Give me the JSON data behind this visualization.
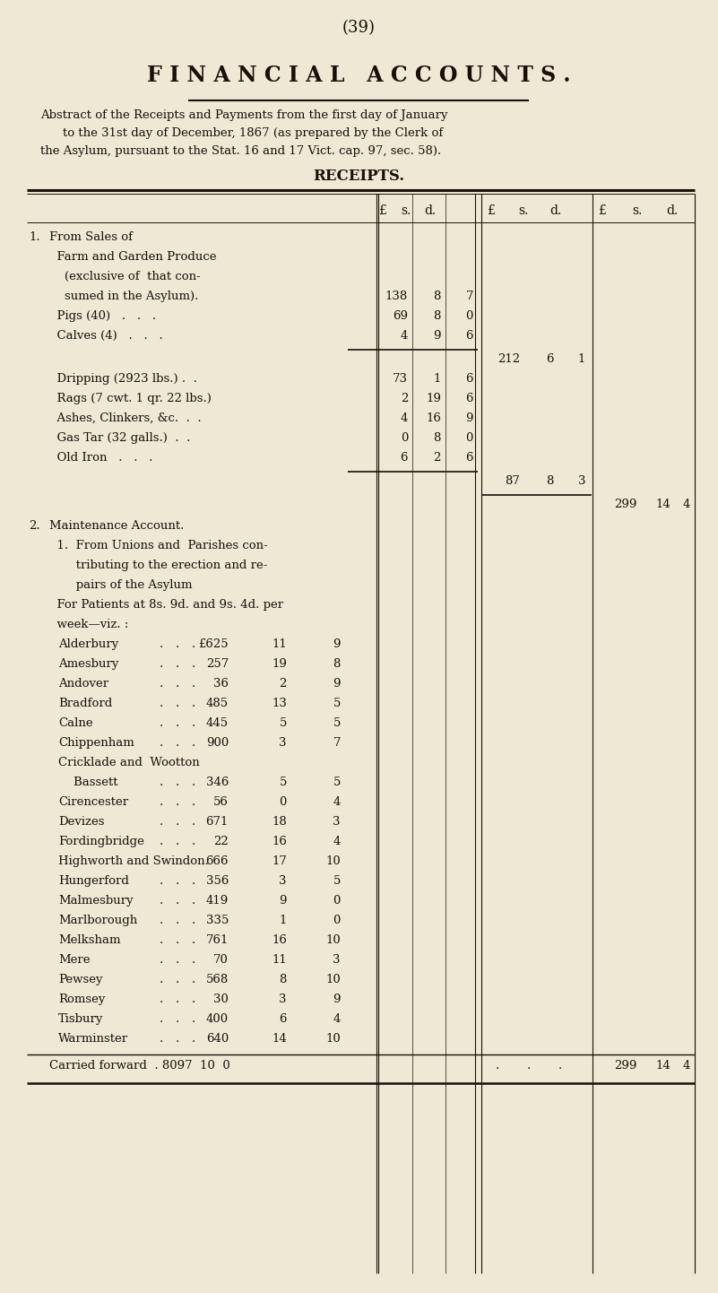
{
  "bg_color": "#eee8d5",
  "text_color": "#1a1008",
  "page_number": "(39)",
  "title": "F I N A N C I A L   A C C O U N T S .",
  "subtitle_line1": "Abstract of the Receipts and Payments from the first day of January",
  "subtitle_line2": "to the 31st day of December, 1867 (as prepared by the Clerk of",
  "subtitle_line3": "the Asylum, pursuant to the Stat. 16 and 17 Vict. cap. 97, sec. 58).",
  "section_title": "RECEIPTS.",
  "col_hdr_lsd": "£   s.   d.",
  "parishes": [
    [
      "Alderbury",
      ".",
      ".",
      ".",
      "£625",
      "11",
      "9"
    ],
    [
      "Amesbury",
      ".",
      ".",
      ".",
      "257",
      "19",
      "8"
    ],
    [
      "Andover",
      ".",
      ".",
      ".",
      "36",
      "2",
      "9"
    ],
    [
      "Bradford",
      ".",
      ".",
      ".",
      "485",
      "13",
      "5"
    ],
    [
      "Calne",
      ".",
      ".",
      ".",
      "445",
      "5",
      "5"
    ],
    [
      "Chippenham",
      ".",
      ".",
      ".",
      "900",
      "3",
      "7"
    ],
    [
      "Cricklade and  Wootton",
      "",
      "",
      "",
      "",
      "",
      ""
    ],
    [
      "    Bassett",
      ".",
      ".",
      ".",
      "346",
      "5",
      "5"
    ],
    [
      "Cirencester",
      ".",
      ".",
      ".",
      "56",
      "0",
      "4"
    ],
    [
      "Devizes",
      ".",
      ".",
      ".",
      "671",
      "18",
      "3"
    ],
    [
      "Fordingbridge",
      ".",
      ".",
      ".",
      "22",
      "16",
      "4"
    ],
    [
      "Highworth and Swindon.",
      "",
      "",
      "",
      "666",
      "17",
      "10"
    ],
    [
      "Hungerford",
      ".",
      ".",
      ".",
      "356",
      "3",
      "5"
    ],
    [
      "Malmesbury",
      ".",
      ".",
      ".",
      "419",
      "9",
      "0"
    ],
    [
      "Marlborough",
      ".",
      ".",
      ".",
      "335",
      "1",
      "0"
    ],
    [
      "Melksham",
      ".",
      ".",
      ".",
      "761",
      "16",
      "10"
    ],
    [
      "Mere",
      ".",
      ".",
      ".",
      "70",
      "11",
      "3"
    ],
    [
      "Pewsey",
      ".",
      ".",
      ".",
      "568",
      "8",
      "10"
    ],
    [
      "Romsey",
      ".",
      ".",
      ".",
      "30",
      "3",
      "9"
    ],
    [
      "Tisbury",
      ".",
      ".",
      ".",
      "400",
      "6",
      "4"
    ],
    [
      "Warminster",
      ".",
      ".",
      ".",
      "640",
      "14",
      "10"
    ]
  ]
}
